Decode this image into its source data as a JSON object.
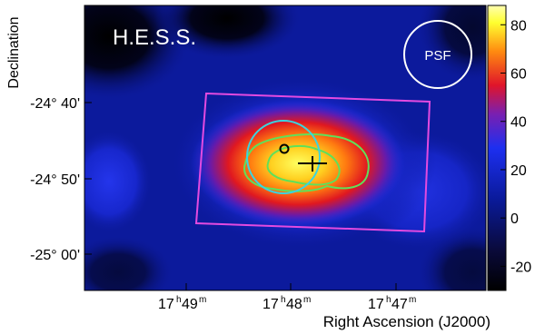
{
  "chart_data": {
    "type": "heatmap",
    "experiment_label": "H.E.S.S.",
    "psf_label": "PSF",
    "xlabel": "Right Ascension (J2000)",
    "ylabel": "Declination",
    "x_ticks": [
      {
        "h": "17",
        "m": "49"
      },
      {
        "h": "17",
        "m": "48"
      },
      {
        "h": "17",
        "m": "47"
      }
    ],
    "y_ticks": [
      "-24° 40'",
      "-24° 50'",
      "-25° 00'"
    ],
    "colorbar": {
      "range": [
        -30,
        88
      ],
      "ticks": [
        "80",
        "60",
        "40",
        "20",
        "0",
        "-20"
      ],
      "tick_values": [
        80,
        60,
        40,
        20,
        0,
        -20
      ]
    },
    "grid": false,
    "colors": {
      "frame_box": "#e34ae0",
      "psf_circle": "#ffffff",
      "cyan_circle": "#3ad4e0",
      "contours": "#5fe05a",
      "marker_cross": "#000000",
      "marker_circle": "#000000"
    }
  }
}
